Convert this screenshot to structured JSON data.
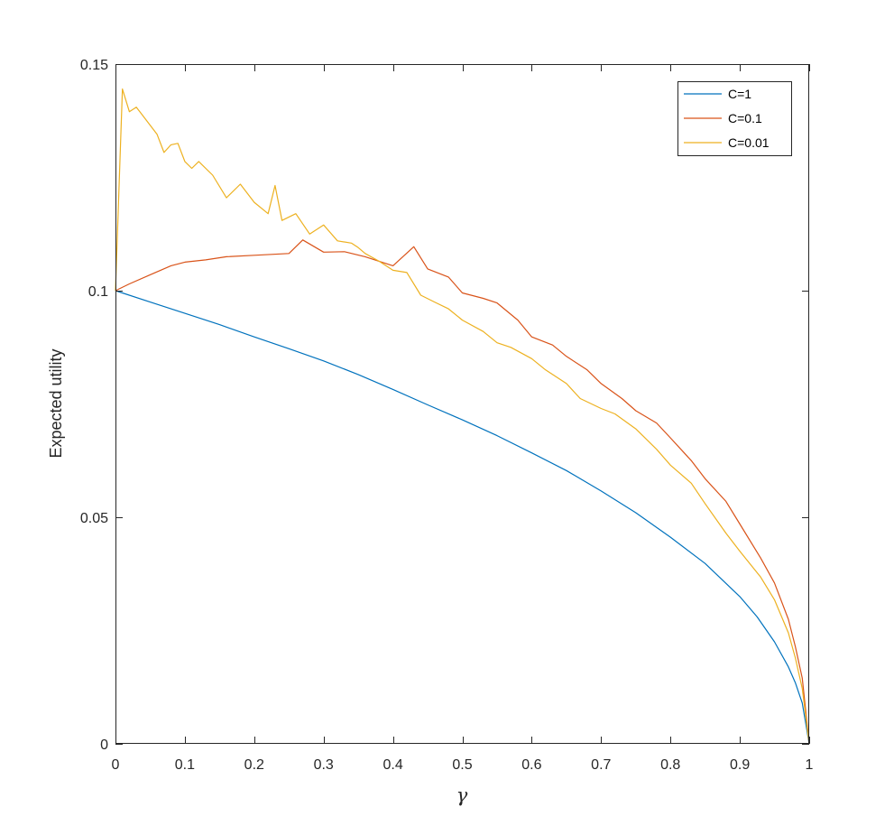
{
  "chart_data": {
    "type": "line",
    "title": "",
    "xlabel": "γ",
    "ylabel": "Expected utility",
    "xlim": [
      0,
      1
    ],
    "ylim": [
      0,
      0.15
    ],
    "xticks": [
      0,
      0.1,
      0.2,
      0.3,
      0.4,
      0.5,
      0.6,
      0.7,
      0.8,
      0.9,
      1
    ],
    "xtick_labels": [
      "0",
      "0.1",
      "0.2",
      "0.3",
      "0.4",
      "0.5",
      "0.6",
      "0.7",
      "0.8",
      "0.9",
      "1"
    ],
    "yticks": [
      0,
      0.05,
      0.1,
      0.15
    ],
    "ytick_labels": [
      "0",
      "0.05",
      "0.1",
      "0.15"
    ],
    "grid": false,
    "legend_position": "top-right",
    "series": [
      {
        "name": "C=1",
        "color": "#0072BD",
        "x": [
          0,
          0.05,
          0.1,
          0.15,
          0.2,
          0.25,
          0.3,
          0.35,
          0.4,
          0.45,
          0.5,
          0.55,
          0.6,
          0.65,
          0.7,
          0.75,
          0.8,
          0.85,
          0.9,
          0.925,
          0.95,
          0.97,
          0.98,
          0.99,
          1
        ],
        "y": [
          0.1,
          0.0975,
          0.095,
          0.0925,
          0.0898,
          0.0872,
          0.0845,
          0.0815,
          0.0782,
          0.0748,
          0.0715,
          0.068,
          0.0642,
          0.0603,
          0.0558,
          0.051,
          0.0456,
          0.0398,
          0.0325,
          0.028,
          0.0225,
          0.017,
          0.0135,
          0.009,
          0
        ]
      },
      {
        "name": "C=0.1",
        "color": "#D95319",
        "x": [
          0,
          0.02,
          0.05,
          0.08,
          0.1,
          0.13,
          0.16,
          0.2,
          0.25,
          0.27,
          0.3,
          0.33,
          0.36,
          0.4,
          0.43,
          0.45,
          0.48,
          0.5,
          0.53,
          0.55,
          0.58,
          0.6,
          0.63,
          0.65,
          0.68,
          0.7,
          0.73,
          0.75,
          0.78,
          0.8,
          0.83,
          0.85,
          0.88,
          0.9,
          0.93,
          0.95,
          0.97,
          0.98,
          0.99,
          1
        ],
        "y": [
          0.1,
          0.1015,
          0.1035,
          0.1055,
          0.1063,
          0.1068,
          0.1075,
          0.1078,
          0.1082,
          0.1112,
          0.1085,
          0.1086,
          0.1075,
          0.1055,
          0.1097,
          0.1048,
          0.103,
          0.0995,
          0.0983,
          0.0973,
          0.0935,
          0.0898,
          0.088,
          0.0855,
          0.0825,
          0.0795,
          0.0762,
          0.0735,
          0.0708,
          0.0675,
          0.0625,
          0.0585,
          0.0535,
          0.0485,
          0.041,
          0.0355,
          0.0275,
          0.0215,
          0.0145,
          0
        ]
      },
      {
        "name": "C=0.01",
        "color": "#EDB120",
        "x": [
          0,
          0.01,
          0.02,
          0.03,
          0.04,
          0.06,
          0.07,
          0.08,
          0.09,
          0.1,
          0.11,
          0.12,
          0.14,
          0.16,
          0.18,
          0.2,
          0.22,
          0.23,
          0.24,
          0.26,
          0.28,
          0.3,
          0.32,
          0.34,
          0.35,
          0.36,
          0.38,
          0.4,
          0.42,
          0.44,
          0.46,
          0.48,
          0.5,
          0.53,
          0.55,
          0.57,
          0.6,
          0.62,
          0.65,
          0.67,
          0.7,
          0.72,
          0.75,
          0.78,
          0.8,
          0.83,
          0.85,
          0.88,
          0.9,
          0.93,
          0.95,
          0.97,
          0.98,
          0.99,
          1
        ],
        "y": [
          0.1,
          0.1445,
          0.1395,
          0.1405,
          0.1385,
          0.1345,
          0.1305,
          0.1322,
          0.1325,
          0.1285,
          0.127,
          0.1285,
          0.1255,
          0.1205,
          0.1235,
          0.1195,
          0.117,
          0.1232,
          0.1155,
          0.117,
          0.1125,
          0.1145,
          0.111,
          0.1105,
          0.1095,
          0.1082,
          0.1065,
          0.1045,
          0.104,
          0.099,
          0.0975,
          0.096,
          0.0935,
          0.091,
          0.0885,
          0.0875,
          0.085,
          0.0825,
          0.0795,
          0.0762,
          0.074,
          0.0728,
          0.0695,
          0.065,
          0.0615,
          0.0575,
          0.053,
          0.0465,
          0.0425,
          0.0368,
          0.0318,
          0.0245,
          0.019,
          0.0122,
          0
        ]
      }
    ]
  }
}
